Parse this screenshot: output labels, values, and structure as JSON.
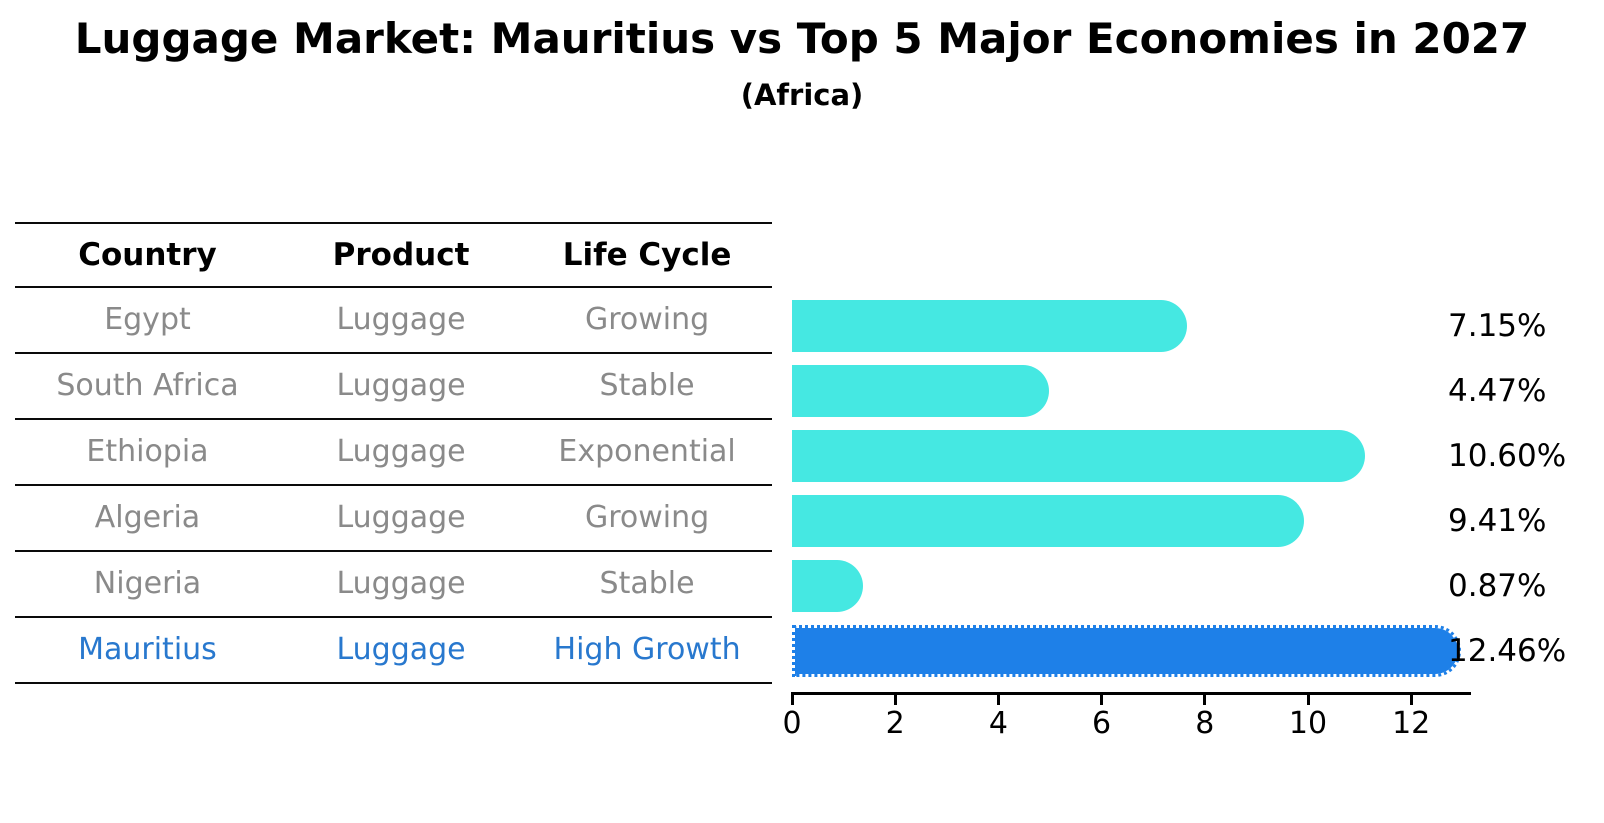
{
  "title": "Luggage Market: Mauritius vs Top 5 Major Economies in 2027",
  "subtitle": "(Africa)",
  "table": {
    "headers": [
      "Country",
      "Product",
      "Life Cycle"
    ],
    "rows": [
      {
        "country": "Egypt",
        "product": "Luggage",
        "life_cycle": "Growing",
        "highlight": false
      },
      {
        "country": "South Africa",
        "product": "Luggage",
        "life_cycle": "Stable",
        "highlight": false
      },
      {
        "country": "Ethiopia",
        "product": "Luggage",
        "life_cycle": "Exponential",
        "highlight": false
      },
      {
        "country": "Algeria",
        "product": "Luggage",
        "life_cycle": "Growing",
        "highlight": false
      },
      {
        "country": "Nigeria",
        "product": "Luggage",
        "life_cycle": "Stable",
        "highlight": false
      },
      {
        "country": "Mauritius",
        "product": "Luggage",
        "life_cycle": "High Growth",
        "highlight": true
      }
    ]
  },
  "chart_data": {
    "type": "bar",
    "orientation": "horizontal",
    "title": "Luggage Market: Mauritius vs Top 5 Major Economies in 2027",
    "subtitle": "(Africa)",
    "categories": [
      "Egypt",
      "South Africa",
      "Ethiopia",
      "Algeria",
      "Nigeria",
      "Mauritius"
    ],
    "values": [
      7.15,
      4.47,
      10.6,
      9.41,
      0.87,
      12.46
    ],
    "value_labels": [
      "7.15%",
      "4.47%",
      "10.60%",
      "9.41%",
      "0.87%",
      "12.46%"
    ],
    "highlight_index": 5,
    "xlim": [
      0,
      13.1
    ],
    "x_ticks": [
      0,
      2,
      4,
      6,
      8,
      10,
      12
    ],
    "x_tick_labels": [
      "0",
      "2",
      "4",
      "6",
      "8",
      "10",
      "12"
    ],
    "grid": false,
    "legend": false
  },
  "colors": {
    "bar_default": "#45e8e2",
    "bar_highlight": "#1e80e8",
    "highlight_text": "#2878ce",
    "row_text": "#8a8a8a",
    "axis": "#000000",
    "background": "#ffffff"
  }
}
